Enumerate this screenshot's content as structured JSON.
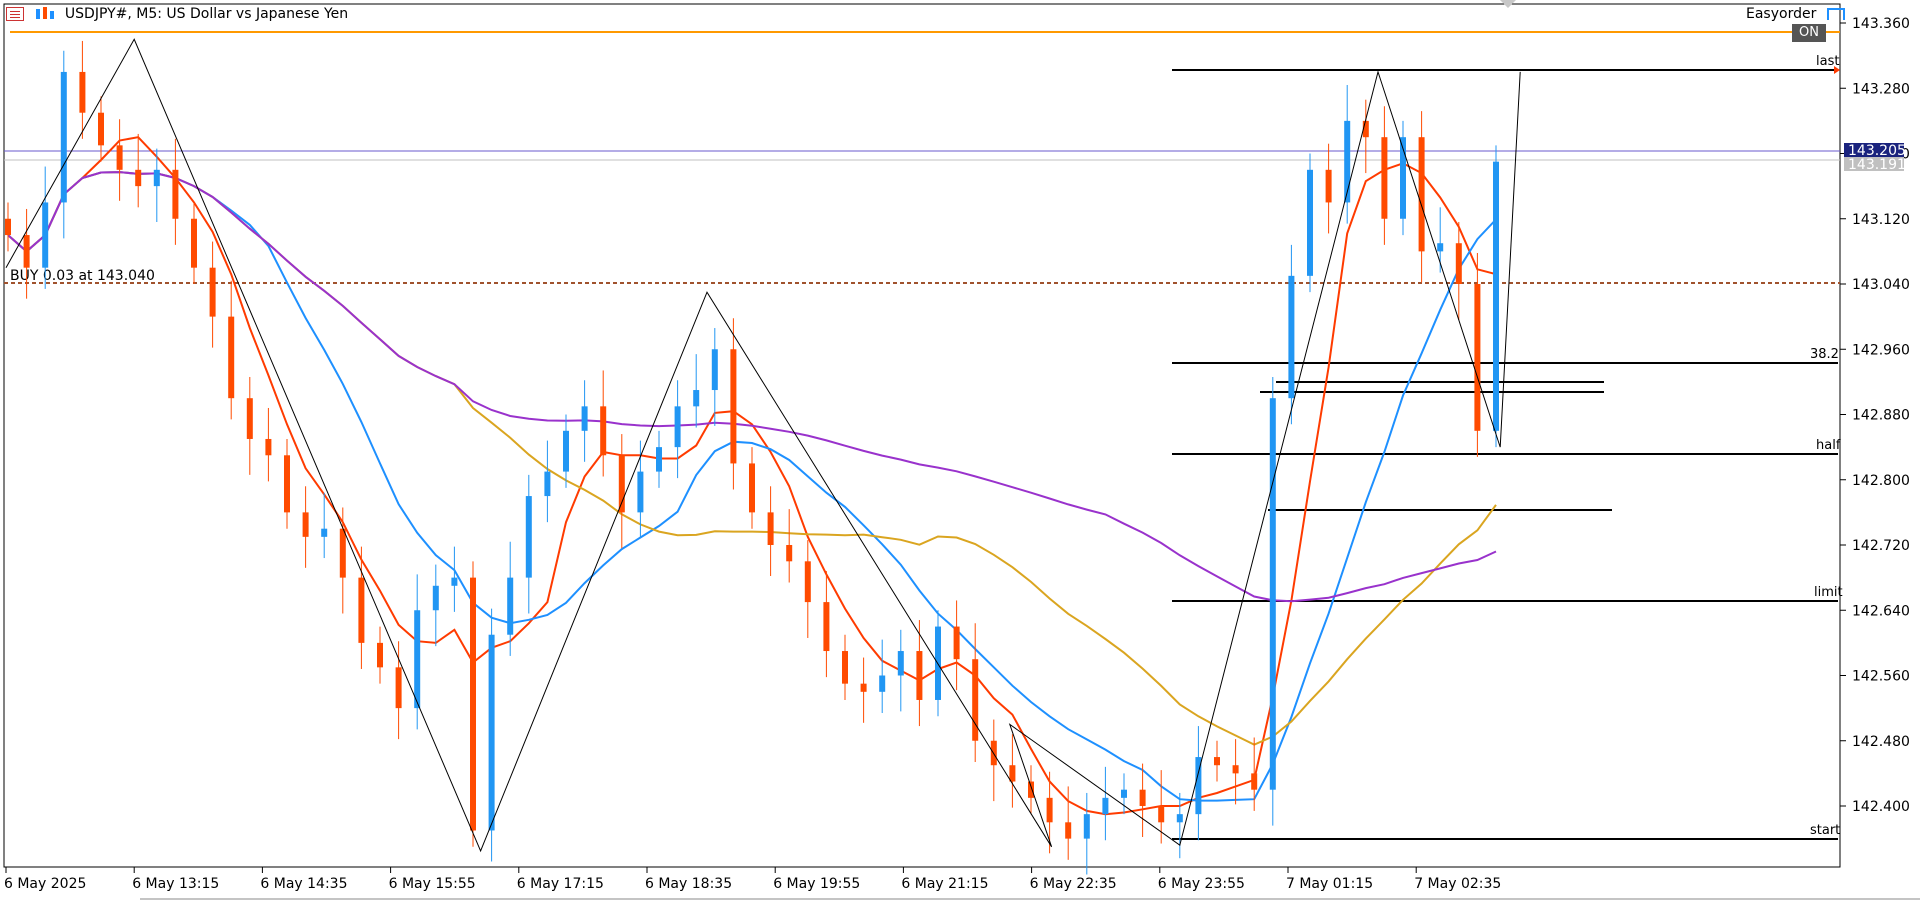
{
  "header": {
    "symbol_title": "USDJPY#, M5:  US Dollar vs Japanese Yen",
    "easyorder_label": "Easyorder",
    "on_badge": "ON"
  },
  "colors": {
    "bull": "#2196f3",
    "bear": "#ff4b00",
    "ma_fast": "#ff3b00",
    "ma_mid": "#1e90ff",
    "ma_slow": "#daa520",
    "ma_long": "#9932cc",
    "top_line": "#ff9900",
    "price_line": "#6a5acd",
    "buy_line": "#a0522d"
  },
  "icons": [
    "chart-menu-icon",
    "candles-icon",
    "easyorder-icon"
  ],
  "chart_data": {
    "type": "candlestick",
    "symbol": "USDJPY#",
    "timeframe": "M5",
    "ylim": [
      142.3,
      143.38
    ],
    "y_ticks": [
      "143.360",
      "143.280",
      "143.200",
      "143.120",
      "143.040",
      "142.960",
      "142.880",
      "142.800",
      "142.720",
      "142.640",
      "142.560",
      "142.480",
      "142.400"
    ],
    "x_ticks": [
      "6 May 2025",
      "6 May 13:15",
      "6 May 14:35",
      "6 May 15:55",
      "6 May 17:15",
      "6 May 18:35",
      "6 May 19:55",
      "6 May 21:15",
      "6 May 22:35",
      "6 May 23:55",
      "7 May 01:15",
      "7 May 02:35"
    ],
    "ask_price_label": "143.205",
    "bid_price_label": "143.191",
    "ask_price": 143.205,
    "bid_price": 143.191,
    "top_level_price": 143.35,
    "buy_order": {
      "label": "BUY 0.03 at 143.040",
      "price": 143.04
    },
    "fib_levels": [
      {
        "label": "last",
        "price": 143.3
      },
      {
        "label": "38.2",
        "price": 142.948
      },
      {
        "label": "half",
        "price": 142.826
      },
      {
        "label": "limit",
        "price": 142.653
      },
      {
        "label": "start",
        "price": 142.352
      }
    ],
    "extra_levels": [
      142.93,
      142.922,
      142.764
    ],
    "zigzag": [
      {
        "x": "6 May 2025",
        "y": 143.06
      },
      {
        "x": "6 May 13:15",
        "y": 143.34
      },
      {
        "x": "6 May 15:55",
        "y": 142.345
      },
      {
        "x": "6 May 18:35",
        "y": 143.03
      },
      {
        "x": "6 May 22:35",
        "y": 142.35
      },
      {
        "x": "6 May 23:55",
        "y": 142.5
      },
      {
        "x": "6 May 23:55",
        "y": 142.352
      },
      {
        "x": "7 May 01:15",
        "y": 143.3
      },
      {
        "x": "7 May 02:35",
        "y": 142.84
      },
      {
        "x": "7 May 02:35",
        "y": 143.3
      }
    ],
    "ohlc_close_series": [
      143.1,
      143.06,
      143.14,
      143.3,
      143.25,
      143.21,
      143.18,
      143.16,
      143.18,
      143.12,
      143.06,
      143.0,
      142.9,
      142.85,
      142.83,
      142.76,
      142.73,
      142.74,
      142.68,
      142.6,
      142.57,
      142.52,
      142.64,
      142.67,
      142.68,
      142.37,
      142.61,
      142.68,
      142.78,
      142.81,
      142.86,
      142.89,
      142.83,
      142.76,
      142.81,
      142.84,
      142.89,
      142.91,
      142.96,
      142.82,
      142.76,
      142.72,
      142.7,
      142.65,
      142.59,
      142.55,
      142.54,
      142.56,
      142.59,
      142.53,
      142.62,
      142.58,
      142.48,
      142.45,
      142.43,
      142.41,
      142.38,
      142.36,
      142.39,
      142.41,
      142.42,
      142.4,
      142.38,
      142.39,
      142.46,
      142.45,
      142.44,
      142.42,
      142.9,
      143.05,
      143.18,
      143.14,
      143.24,
      143.22,
      143.12,
      143.22,
      143.08,
      143.09,
      143.04,
      142.86,
      143.19
    ]
  }
}
